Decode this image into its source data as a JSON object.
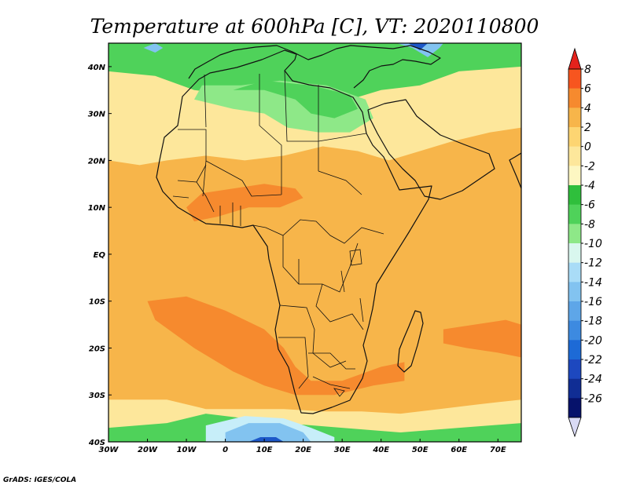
{
  "title": "Temperature at 600hPa [C], VT: 2020110800",
  "credit": "GrADS: IGES/COLA",
  "map": {
    "lon_range": [
      -30,
      76
    ],
    "lat_range": [
      -40,
      45
    ],
    "x_ticks": [
      {
        "lon": -30,
        "label": "30W"
      },
      {
        "lon": -20,
        "label": "20W"
      },
      {
        "lon": -10,
        "label": "10W"
      },
      {
        "lon": 0,
        "label": "0"
      },
      {
        "lon": 10,
        "label": "10E"
      },
      {
        "lon": 20,
        "label": "20E"
      },
      {
        "lon": 30,
        "label": "30E"
      },
      {
        "lon": 40,
        "label": "40E"
      },
      {
        "lon": 50,
        "label": "50E"
      },
      {
        "lon": 60,
        "label": "60E"
      },
      {
        "lon": 70,
        "label": "70E"
      }
    ],
    "y_ticks": [
      {
        "lat": 40,
        "label": "40N"
      },
      {
        "lat": 30,
        "label": "30N"
      },
      {
        "lat": 20,
        "label": "20N"
      },
      {
        "lat": 10,
        "label": "10N"
      },
      {
        "lat": 0,
        "label": "EQ"
      },
      {
        "lat": -10,
        "label": "10S"
      },
      {
        "lat": -20,
        "label": "20S"
      },
      {
        "lat": -30,
        "label": "30S"
      },
      {
        "lat": -40,
        "label": "40S"
      }
    ],
    "background_color": "#f7b54a",
    "fields": [
      {
        "color": "#fde79b",
        "poly": [
          [
            -30,
            45
          ],
          [
            76,
            45
          ],
          [
            76,
            27
          ],
          [
            68,
            26
          ],
          [
            58,
            24
          ],
          [
            50,
            22
          ],
          [
            42,
            20
          ],
          [
            34,
            22
          ],
          [
            25,
            23
          ],
          [
            15,
            21
          ],
          [
            5,
            20
          ],
          [
            -5,
            21
          ],
          [
            -15,
            20
          ],
          [
            -22,
            19
          ],
          [
            -30,
            20
          ]
        ]
      },
      {
        "color": "#4fd25a",
        "poly": [
          [
            -30,
            45
          ],
          [
            76,
            45
          ],
          [
            76,
            40
          ],
          [
            60,
            39
          ],
          [
            50,
            36
          ],
          [
            40,
            35
          ],
          [
            32,
            33
          ],
          [
            22,
            31
          ],
          [
            12,
            33
          ],
          [
            2,
            34
          ],
          [
            -8,
            35
          ],
          [
            -18,
            38
          ],
          [
            -30,
            39
          ]
        ]
      },
      {
        "color": "#8ee888",
        "poly": [
          [
            -8,
            33
          ],
          [
            2,
            31
          ],
          [
            10,
            30
          ],
          [
            16,
            27
          ],
          [
            24,
            26
          ],
          [
            32,
            26
          ],
          [
            38,
            29
          ],
          [
            36,
            33
          ],
          [
            26,
            36
          ],
          [
            14,
            37
          ],
          [
            4,
            36
          ],
          [
            -6,
            36
          ]
        ]
      },
      {
        "color": "#4fd25a",
        "poly": [
          [
            2,
            35
          ],
          [
            10,
            35
          ],
          [
            18,
            33
          ],
          [
            22,
            30
          ],
          [
            28,
            29
          ],
          [
            34,
            31
          ],
          [
            32,
            34
          ],
          [
            22,
            36
          ],
          [
            10,
            37
          ]
        ]
      },
      {
        "color": "#f68a2e",
        "poly": [
          [
            -10,
            10
          ],
          [
            -6,
            13
          ],
          [
            2,
            14
          ],
          [
            10,
            15
          ],
          [
            18,
            14
          ],
          [
            20,
            12
          ],
          [
            14,
            10
          ],
          [
            6,
            10
          ],
          [
            -2,
            8
          ],
          [
            -8,
            7
          ]
        ]
      },
      {
        "color": "#f68a2e",
        "poly": [
          [
            -20,
            -10
          ],
          [
            -10,
            -9
          ],
          [
            0,
            -12
          ],
          [
            10,
            -16
          ],
          [
            15,
            -20
          ],
          [
            18,
            -24
          ],
          [
            22,
            -27
          ],
          [
            30,
            -27
          ],
          [
            40,
            -24
          ],
          [
            46,
            -23
          ],
          [
            46,
            -27
          ],
          [
            38,
            -28
          ],
          [
            28,
            -30
          ],
          [
            18,
            -30
          ],
          [
            10,
            -28
          ],
          [
            2,
            -25
          ],
          [
            -8,
            -20
          ],
          [
            -18,
            -14
          ]
        ]
      },
      {
        "color": "#f68a2e",
        "poly": [
          [
            56,
            -16
          ],
          [
            64,
            -15
          ],
          [
            72,
            -14
          ],
          [
            76,
            -15
          ],
          [
            76,
            -22
          ],
          [
            70,
            -21
          ],
          [
            62,
            -20
          ],
          [
            56,
            -19
          ]
        ]
      },
      {
        "color": "#fde79b",
        "poly": [
          [
            -30,
            -31
          ],
          [
            -15,
            -31
          ],
          [
            -5,
            -33
          ],
          [
            5,
            -33
          ],
          [
            15,
            -33
          ],
          [
            25,
            -33.5
          ],
          [
            35,
            -33.5
          ],
          [
            45,
            -34
          ],
          [
            55,
            -33
          ],
          [
            65,
            -32
          ],
          [
            76,
            -31
          ],
          [
            76,
            -40
          ],
          [
            -30,
            -40
          ]
        ]
      },
      {
        "color": "#4fd25a",
        "poly": [
          [
            -30,
            -37
          ],
          [
            -15,
            -36
          ],
          [
            -5,
            -34
          ],
          [
            5,
            -35
          ],
          [
            15,
            -36
          ],
          [
            30,
            -37
          ],
          [
            45,
            -38
          ],
          [
            60,
            -37
          ],
          [
            76,
            -36
          ],
          [
            76,
            -40
          ],
          [
            -30,
            -40
          ]
        ]
      },
      {
        "color": "#c7eef9",
        "poly": [
          [
            -5,
            -36.5
          ],
          [
            5,
            -34.5
          ],
          [
            15,
            -35
          ],
          [
            22,
            -37
          ],
          [
            28,
            -39
          ],
          [
            28,
            -40
          ],
          [
            -5,
            -40
          ]
        ]
      },
      {
        "color": "#82c3f0",
        "poly": [
          [
            0,
            -38
          ],
          [
            6,
            -36
          ],
          [
            14,
            -36
          ],
          [
            20,
            -38
          ],
          [
            22,
            -40
          ],
          [
            0,
            -40
          ]
        ]
      },
      {
        "color": "#1d58c8",
        "poly": [
          [
            6,
            -40
          ],
          [
            9,
            -39
          ],
          [
            13,
            -39
          ],
          [
            15,
            -40
          ]
        ]
      },
      {
        "color": "#82c3f0",
        "poly": [
          [
            44,
            45
          ],
          [
            48,
            44
          ],
          [
            52,
            42
          ],
          [
            55,
            44
          ],
          [
            56,
            45
          ]
        ]
      },
      {
        "color": "#1d58c8",
        "poly": [
          [
            47,
            45
          ],
          [
            50,
            43.5
          ],
          [
            52,
            45
          ]
        ]
      },
      {
        "color": "#82c3f0",
        "poly": [
          [
            -21,
            44
          ],
          [
            -18,
            43
          ],
          [
            -16,
            44
          ],
          [
            -18,
            45
          ]
        ]
      }
    ],
    "colorbar": {
      "levels": [
        "8",
        "6",
        "4",
        "2",
        "0",
        "-2",
        "-4",
        "-6",
        "-8",
        "-10",
        "-12",
        "-14",
        "-16",
        "-18",
        "-20",
        "-22",
        "-24",
        "-26"
      ],
      "colors": [
        "#e5221c",
        "#f7551f",
        "#f68a2e",
        "#f7b54a",
        "#fdd572",
        "#fde79b",
        "#fdf7c2",
        "#2fbf3c",
        "#4fd25a",
        "#8ee888",
        "#d9f7ee",
        "#a9dcf7",
        "#82c3f0",
        "#5ea6e8",
        "#3d8ae0",
        "#1d6ad6",
        "#1d48bf",
        "#102d94",
        "#06126b",
        "#d9daf5"
      ]
    }
  }
}
